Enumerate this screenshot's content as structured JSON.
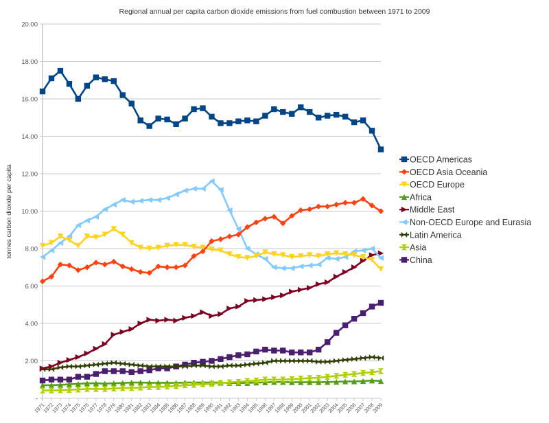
{
  "chart_data": {
    "type": "line",
    "title": "Regional annual per capita carbon dioxide emissions from fuel combustion between 1971 to 2009",
    "xlabel": "",
    "ylabel": "tonnes carbon dioxide per capita",
    "ylim": [
      0,
      20
    ],
    "yticks": [
      "-",
      "2.00",
      "4.00",
      "6.00",
      "8.00",
      "10.00",
      "12.00",
      "14.00",
      "16.00",
      "18.00",
      "20.00"
    ],
    "grid": true,
    "legend_position": "right",
    "x": [
      "1971",
      "1972",
      "1973",
      "1974",
      "1975",
      "1976",
      "1977",
      "1978",
      "1979",
      "1980",
      "1981",
      "1982",
      "1983",
      "1984",
      "1985",
      "1986",
      "1987",
      "1988",
      "1989",
      "1990",
      "1991",
      "1992",
      "1993",
      "1994",
      "1995",
      "1996",
      "1997",
      "1998",
      "1999",
      "2000",
      "2001",
      "2002",
      "2003",
      "2004",
      "2005",
      "2006",
      "2007",
      "2008",
      "2009"
    ],
    "series": [
      {
        "name": "OECD Americas",
        "color": "#004586",
        "marker": "square",
        "values": [
          16.4,
          17.1,
          17.5,
          16.8,
          16.0,
          16.7,
          17.15,
          17.05,
          16.95,
          16.2,
          15.75,
          14.85,
          14.55,
          14.95,
          14.9,
          14.65,
          14.95,
          15.45,
          15.5,
          15.05,
          14.7,
          14.7,
          14.8,
          14.85,
          14.8,
          15.1,
          15.45,
          15.3,
          15.2,
          15.55,
          15.3,
          15.0,
          15.1,
          15.15,
          15.05,
          14.75,
          14.85,
          14.3,
          13.3
        ]
      },
      {
        "name": "OECD Asia Oceania",
        "color": "#ff420e",
        "marker": "diamond",
        "values": [
          6.25,
          6.5,
          7.15,
          7.1,
          6.85,
          7.0,
          7.25,
          7.15,
          7.3,
          7.05,
          6.9,
          6.75,
          6.7,
          7.05,
          7.0,
          7.0,
          7.1,
          7.6,
          7.85,
          8.4,
          8.5,
          8.65,
          8.75,
          9.15,
          9.4,
          9.6,
          9.7,
          9.35,
          9.75,
          10.05,
          10.1,
          10.25,
          10.25,
          10.35,
          10.45,
          10.45,
          10.65,
          10.3,
          10.0
        ]
      },
      {
        "name": "OECD Europe",
        "color": "#ffd320",
        "marker": "triangle-down",
        "values": [
          8.15,
          8.3,
          8.65,
          8.45,
          8.15,
          8.65,
          8.6,
          8.75,
          9.05,
          8.75,
          8.3,
          8.05,
          8.0,
          8.05,
          8.15,
          8.2,
          8.2,
          8.1,
          8.05,
          7.95,
          7.9,
          7.7,
          7.55,
          7.5,
          7.6,
          7.8,
          7.7,
          7.65,
          7.55,
          7.6,
          7.65,
          7.6,
          7.7,
          7.75,
          7.7,
          7.65,
          7.55,
          7.4,
          6.9
        ]
      },
      {
        "name": "Africa",
        "color": "#579d1c",
        "marker": "triangle-up",
        "values": [
          0.7,
          0.7,
          0.72,
          0.75,
          0.77,
          0.8,
          0.8,
          0.78,
          0.8,
          0.82,
          0.84,
          0.84,
          0.83,
          0.83,
          0.83,
          0.82,
          0.84,
          0.84,
          0.84,
          0.84,
          0.84,
          0.82,
          0.82,
          0.82,
          0.84,
          0.85,
          0.87,
          0.87,
          0.86,
          0.86,
          0.86,
          0.86,
          0.87,
          0.88,
          0.9,
          0.9,
          0.92,
          0.95,
          0.92
        ]
      },
      {
        "name": "Middle East",
        "color": "#7e0021",
        "marker": "triangle-right",
        "values": [
          1.6,
          1.7,
          1.9,
          2.05,
          2.2,
          2.4,
          2.65,
          2.9,
          3.4,
          3.55,
          3.7,
          4.0,
          4.2,
          4.15,
          4.2,
          4.15,
          4.3,
          4.4,
          4.6,
          4.4,
          4.5,
          4.8,
          4.9,
          5.2,
          5.25,
          5.3,
          5.4,
          5.5,
          5.7,
          5.8,
          5.9,
          6.1,
          6.2,
          6.5,
          6.75,
          7.0,
          7.35,
          7.65,
          7.75
        ]
      },
      {
        "name": "Non-OECD Europe and Eurasia",
        "color": "#83caff",
        "marker": "triangle-left",
        "values": [
          7.55,
          7.9,
          8.3,
          8.65,
          9.25,
          9.5,
          9.7,
          10.1,
          10.35,
          10.6,
          10.5,
          10.55,
          10.6,
          10.6,
          10.7,
          10.9,
          11.1,
          11.2,
          11.2,
          11.6,
          11.15,
          10.05,
          9.05,
          8.0,
          7.7,
          7.45,
          7.0,
          6.95,
          6.95,
          7.05,
          7.1,
          7.15,
          7.5,
          7.45,
          7.55,
          7.85,
          7.9,
          8.0,
          7.5
        ]
      },
      {
        "name": "Latin America",
        "color": "#314004",
        "marker": "bowtie",
        "values": [
          1.55,
          1.55,
          1.65,
          1.7,
          1.7,
          1.75,
          1.8,
          1.85,
          1.9,
          1.85,
          1.8,
          1.75,
          1.7,
          1.7,
          1.7,
          1.7,
          1.7,
          1.75,
          1.75,
          1.7,
          1.7,
          1.75,
          1.75,
          1.8,
          1.85,
          1.9,
          2.0,
          2.0,
          2.0,
          2.0,
          2.0,
          1.95,
          1.95,
          2.0,
          2.05,
          2.1,
          2.15,
          2.2,
          2.15
        ]
      },
      {
        "name": "Asia",
        "color": "#aecf00",
        "marker": "hourglass",
        "values": [
          0.42,
          0.42,
          0.43,
          0.45,
          0.47,
          0.5,
          0.5,
          0.5,
          0.52,
          0.55,
          0.55,
          0.57,
          0.6,
          0.6,
          0.63,
          0.65,
          0.7,
          0.72,
          0.75,
          0.78,
          0.82,
          0.85,
          0.88,
          0.92,
          0.95,
          1.0,
          1.0,
          1.0,
          1.02,
          1.05,
          1.08,
          1.1,
          1.15,
          1.2,
          1.25,
          1.3,
          1.35,
          1.4,
          1.45
        ]
      },
      {
        "name": "China",
        "color": "#4b1f6f",
        "marker": "square",
        "values": [
          0.95,
          1.0,
          1.0,
          1.0,
          1.15,
          1.15,
          1.3,
          1.45,
          1.45,
          1.45,
          1.4,
          1.45,
          1.5,
          1.6,
          1.6,
          1.7,
          1.8,
          1.9,
          1.95,
          2.0,
          2.1,
          2.2,
          2.3,
          2.35,
          2.5,
          2.6,
          2.55,
          2.55,
          2.45,
          2.45,
          2.45,
          2.6,
          3.0,
          3.5,
          3.9,
          4.25,
          4.55,
          4.9,
          5.1
        ]
      }
    ]
  }
}
